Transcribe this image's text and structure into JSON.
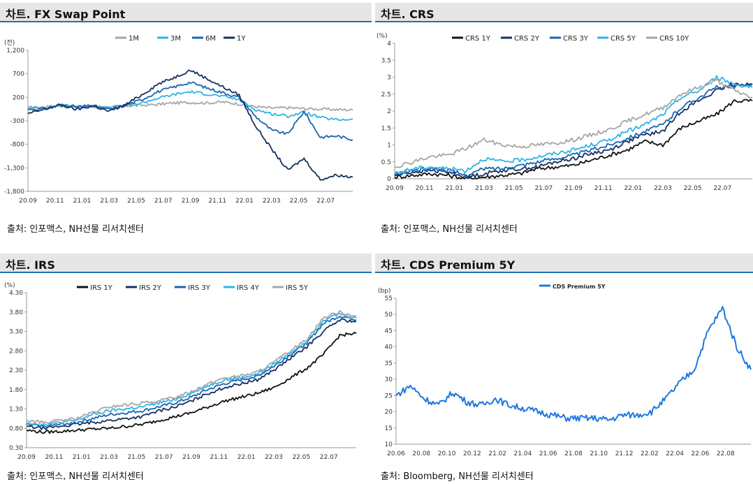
{
  "colors": {
    "m1": "#a6a6a6",
    "m3": "#2fb3e8",
    "m6": "#1766b0",
    "y1": "#17305f",
    "black": "#111111",
    "cds": "#1f77e0"
  },
  "panels": [
    {
      "title": "차트. FX Swap Point",
      "source": "출처: 인포맥스, NH선물 리서치센터"
    },
    {
      "title": "차트. CRS",
      "source": "출처: 인포맥스, NH선물 리서치센터"
    },
    {
      "title": "차트. IRS",
      "source": "출처: 인포맥스, NH선물 리서치센터"
    },
    {
      "title": "차트. CDS Premium 5Y",
      "source": "출처: Bloomberg, NH선물 리서치센터"
    }
  ],
  "chart_data": [
    {
      "type": "line",
      "title": "차트. FX Swap Point",
      "unit_label": "(전)",
      "ylim": [
        -1800,
        1200
      ],
      "yticks": [
        "1,200",
        "700",
        "200",
        "-300",
        "-800",
        "-1,300",
        "-1,800"
      ],
      "xticks": [
        "20.09",
        "20.11",
        "21.01",
        "21.03",
        "21.05",
        "21.07",
        "21.09",
        "21.11",
        "22.01",
        "22.03",
        "22.05",
        "22.07"
      ],
      "legend": "top",
      "series": [
        {
          "name": "1M",
          "color": "#a6a6a6",
          "values": [
            -20,
            -10,
            20,
            0,
            10,
            -10,
            20,
            30,
            50,
            80,
            90,
            80,
            100,
            60,
            0,
            -30,
            -20,
            -40,
            -50,
            -60,
            -70
          ]
        },
        {
          "name": "3M",
          "color": "#2fb3e8",
          "values": [
            -30,
            -20,
            30,
            0,
            10,
            -30,
            20,
            80,
            180,
            260,
            320,
            270,
            220,
            150,
            -60,
            -150,
            -200,
            -120,
            -230,
            -280,
            -260
          ]
        },
        {
          "name": "6M",
          "color": "#1766b0",
          "values": [
            -60,
            -40,
            40,
            0,
            20,
            -60,
            30,
            150,
            320,
            420,
            520,
            400,
            300,
            200,
            -200,
            -500,
            -580,
            -100,
            -650,
            -620,
            -700
          ]
        },
        {
          "name": "1Y",
          "color": "#17305f",
          "values": [
            -150,
            -60,
            40,
            -60,
            20,
            -100,
            40,
            250,
            480,
            620,
            780,
            600,
            420,
            250,
            -400,
            -900,
            -1350,
            -1100,
            -1550,
            -1450,
            -1500
          ]
        }
      ]
    },
    {
      "type": "line",
      "title": "차트. CRS",
      "unit_label": "(%)",
      "ylim": [
        0,
        4
      ],
      "yticks": [
        "4",
        "3.5",
        "3",
        "2.5",
        "2",
        "1.5",
        "1",
        "0.5",
        "0"
      ],
      "xticks": [
        "20.09",
        "20.11",
        "21.01",
        "21.03",
        "21.05",
        "21.07",
        "21.09",
        "21.11",
        "22.01",
        "22.03",
        "22.05",
        "22.07"
      ],
      "legend": "top",
      "series": [
        {
          "name": "CRS 1Y",
          "color": "#111111",
          "values": [
            0.05,
            0.1,
            0.15,
            0.1,
            0.0,
            0.05,
            0.1,
            0.15,
            0.3,
            0.35,
            0.4,
            0.55,
            0.7,
            0.85,
            1.1,
            1.0,
            1.5,
            1.7,
            1.9,
            2.3,
            2.3
          ]
        },
        {
          "name": "CRS 2Y",
          "color": "#17305f",
          "values": [
            0.1,
            0.2,
            0.25,
            0.2,
            0.05,
            0.15,
            0.25,
            0.3,
            0.35,
            0.5,
            0.6,
            0.75,
            0.85,
            1.1,
            1.3,
            1.4,
            2.0,
            2.3,
            2.6,
            2.8,
            2.8
          ]
        },
        {
          "name": "CRS 3Y",
          "color": "#1766b0",
          "values": [
            0.12,
            0.25,
            0.3,
            0.25,
            0.1,
            0.3,
            0.3,
            0.4,
            0.5,
            0.6,
            0.7,
            0.85,
            1.0,
            1.2,
            1.4,
            1.6,
            2.1,
            2.4,
            2.7,
            2.7,
            2.8
          ]
        },
        {
          "name": "CRS 5Y",
          "color": "#2fb3e8",
          "values": [
            0.15,
            0.3,
            0.35,
            0.3,
            0.25,
            0.6,
            0.5,
            0.55,
            0.65,
            0.75,
            0.85,
            1.0,
            1.15,
            1.4,
            1.6,
            1.9,
            2.4,
            2.6,
            3.0,
            2.8,
            2.7
          ]
        },
        {
          "name": "CRS 10Y",
          "color": "#a6a6a6",
          "values": [
            0.35,
            0.5,
            0.65,
            0.7,
            0.9,
            1.15,
            1.0,
            0.95,
            1.0,
            1.05,
            1.15,
            1.3,
            1.45,
            1.7,
            1.9,
            2.1,
            2.5,
            2.7,
            2.9,
            2.6,
            2.4
          ]
        }
      ]
    },
    {
      "type": "line",
      "title": "차트. IRS",
      "unit_label": "(%)",
      "ylim": [
        0.3,
        4.3
      ],
      "yticks": [
        "4.30",
        "3.80",
        "3.30",
        "2.80",
        "2.30",
        "1.80",
        "1.30",
        "0.80",
        "0.30"
      ],
      "xticks": [
        "20.09",
        "20.11",
        "21.01",
        "21.03",
        "21.05",
        "21.07",
        "21.09",
        "21.11",
        "22.01",
        "22.03",
        "22.05",
        "22.07"
      ],
      "legend": "top",
      "series": [
        {
          "name": "IRS 1Y",
          "color": "#111111",
          "values": [
            0.75,
            0.7,
            0.72,
            0.75,
            0.78,
            0.8,
            0.85,
            0.9,
            1.0,
            1.1,
            1.2,
            1.35,
            1.5,
            1.6,
            1.7,
            1.85,
            2.1,
            2.35,
            2.7,
            3.2,
            3.25
          ]
        },
        {
          "name": "IRS 2Y",
          "color": "#17305f",
          "values": [
            0.85,
            0.8,
            0.85,
            0.9,
            0.95,
            1.0,
            1.05,
            1.1,
            1.25,
            1.35,
            1.5,
            1.7,
            1.85,
            1.95,
            2.05,
            2.3,
            2.6,
            2.9,
            3.3,
            3.6,
            3.55
          ]
        },
        {
          "name": "IRS 3Y",
          "color": "#1766b0",
          "values": [
            0.9,
            0.85,
            0.9,
            0.95,
            1.05,
            1.15,
            1.2,
            1.25,
            1.35,
            1.45,
            1.6,
            1.8,
            1.95,
            2.05,
            2.15,
            2.4,
            2.7,
            3.0,
            3.5,
            3.7,
            3.6
          ]
        },
        {
          "name": "IRS 4Y",
          "color": "#2fb3e8",
          "values": [
            0.95,
            0.9,
            0.95,
            1.0,
            1.15,
            1.25,
            1.3,
            1.35,
            1.45,
            1.55,
            1.7,
            1.9,
            2.05,
            2.1,
            2.2,
            2.45,
            2.75,
            3.05,
            3.6,
            3.75,
            3.65
          ]
        },
        {
          "name": "IRS 5Y",
          "color": "#a6a6a6",
          "values": [
            1.0,
            0.95,
            1.0,
            1.05,
            1.2,
            1.35,
            1.4,
            1.45,
            1.5,
            1.6,
            1.75,
            1.95,
            2.1,
            2.15,
            2.25,
            2.5,
            2.8,
            3.1,
            3.65,
            3.8,
            3.7
          ]
        }
      ]
    },
    {
      "type": "line",
      "title": "차트. CDS Premium 5Y",
      "unit_label": "(bp)",
      "ylim": [
        10,
        55
      ],
      "yticks": [
        "55",
        "50",
        "45",
        "40",
        "35",
        "30",
        "25",
        "20",
        "15",
        "10"
      ],
      "xticks": [
        "20.06",
        "20.08",
        "20.10",
        "20.12",
        "21.02",
        "21.04",
        "21.06",
        "21.08",
        "21.10",
        "21.12",
        "22.02",
        "22.04",
        "22.06",
        "22.08"
      ],
      "legend": "top",
      "series": [
        {
          "name": "CDS Premium 5Y",
          "color": "#1f77e0",
          "values": [
            25,
            28,
            24,
            22,
            26,
            23,
            22,
            24,
            22,
            21,
            20,
            19,
            18,
            18,
            18,
            17.5,
            19,
            19,
            20,
            24,
            29,
            33,
            45,
            52,
            40,
            33
          ]
        }
      ]
    }
  ]
}
